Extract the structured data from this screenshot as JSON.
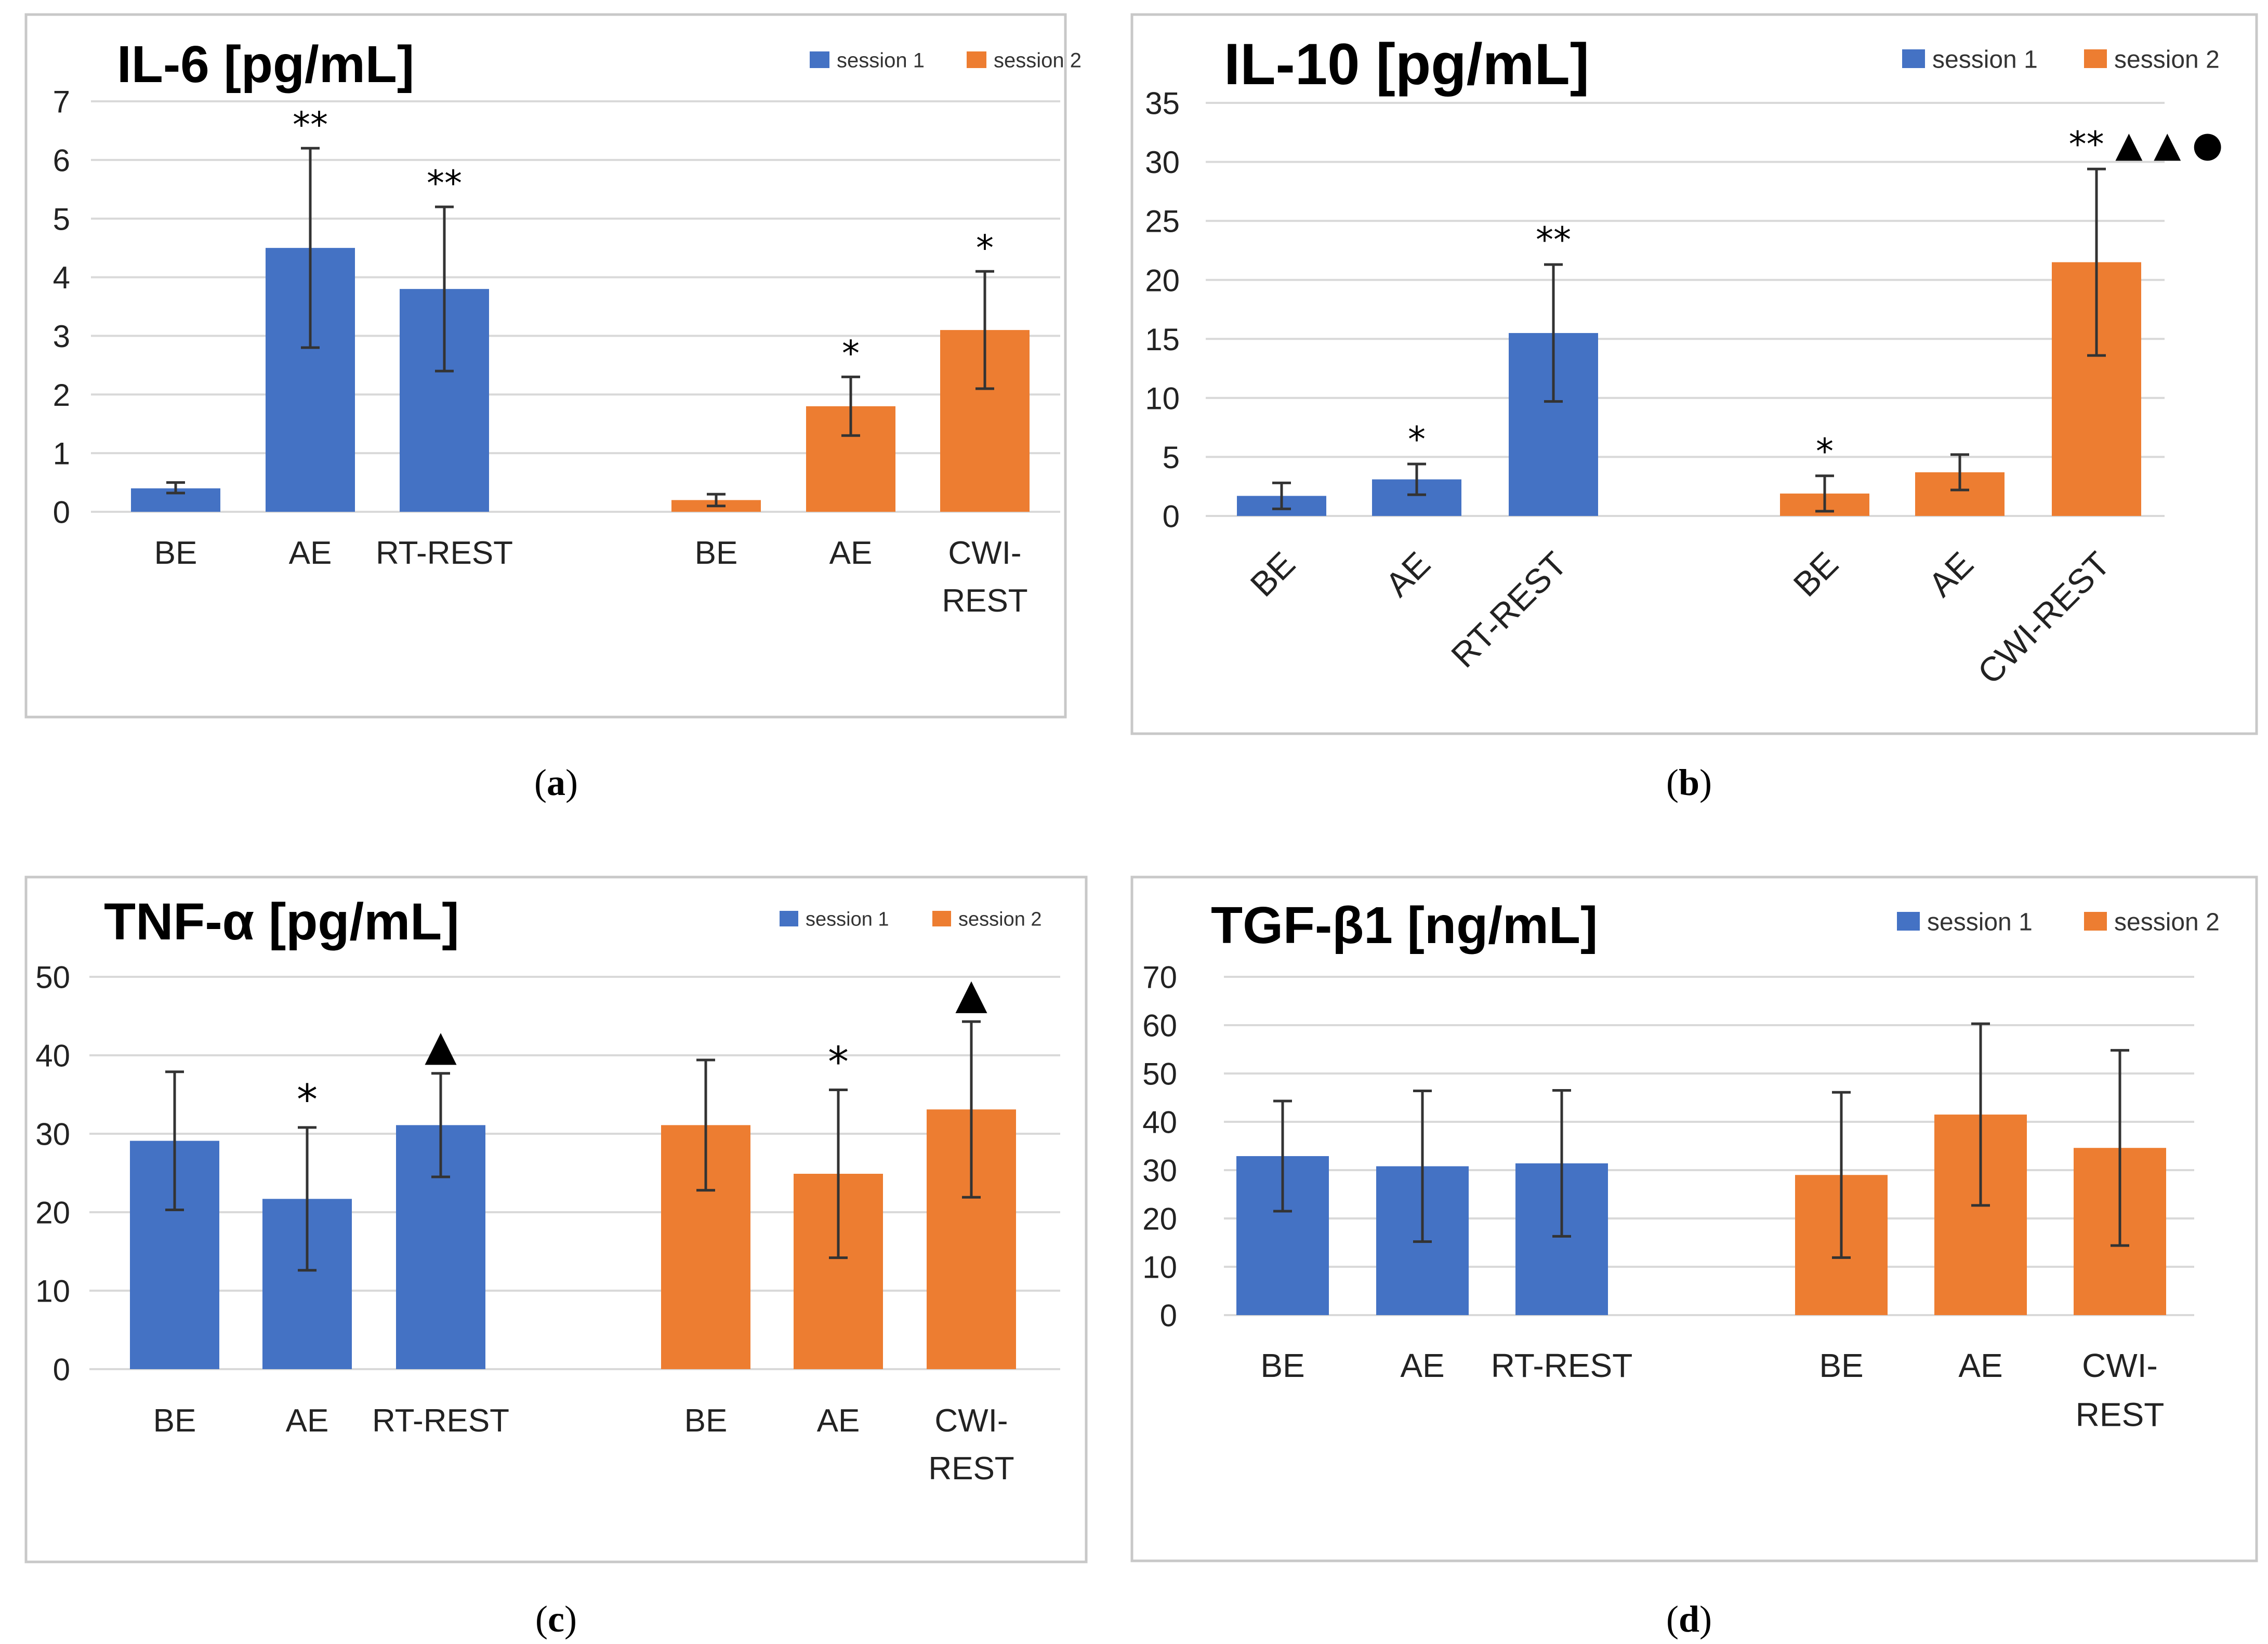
{
  "chart_data": [
    {
      "type": "bar",
      "panel_label": "a",
      "title": "IL-6 [pg/mL]",
      "ylim": [
        0,
        7
      ],
      "yticks": [
        0,
        1,
        2,
        3,
        4,
        5,
        6,
        7
      ],
      "xlabel_rotated": false,
      "legend": [
        {
          "name": "session 1",
          "color": "#4472c4"
        },
        {
          "name": "session 2",
          "color": "#ed7d31"
        }
      ],
      "groups": [
        {
          "series": "session 1",
          "color": "#4472c4",
          "bars": [
            {
              "label": [
                "BE"
              ],
              "value": 0.4,
              "error_low": 0.32,
              "error_high": 0.5,
              "marks": ""
            },
            {
              "label": [
                "AE"
              ],
              "value": 4.5,
              "error_low": 2.8,
              "error_high": 6.2,
              "marks": "**"
            },
            {
              "label": [
                "RT-REST"
              ],
              "value": 3.8,
              "error_low": 2.4,
              "error_high": 5.2,
              "marks": "**"
            }
          ]
        },
        {
          "series": "session 2",
          "color": "#ed7d31",
          "bars": [
            {
              "label": [
                "BE"
              ],
              "value": 0.2,
              "error_low": 0.1,
              "error_high": 0.3,
              "marks": ""
            },
            {
              "label": [
                "AE"
              ],
              "value": 1.8,
              "error_low": 1.3,
              "error_high": 2.3,
              "marks": "*"
            },
            {
              "label": [
                "CWI-",
                "REST"
              ],
              "value": 3.1,
              "error_low": 2.1,
              "error_high": 4.1,
              "marks": "*"
            }
          ]
        }
      ]
    },
    {
      "type": "bar",
      "panel_label": "b",
      "title": "IL-10 [pg/mL]",
      "ylim": [
        0,
        35
      ],
      "yticks": [
        0,
        5,
        10,
        15,
        20,
        25,
        30,
        35
      ],
      "xlabel_rotated": true,
      "legend": [
        {
          "name": "session 1",
          "color": "#4472c4"
        },
        {
          "name": "session 2",
          "color": "#ed7d31"
        }
      ],
      "groups": [
        {
          "series": "session 1",
          "color": "#4472c4",
          "bars": [
            {
              "label": [
                "BE"
              ],
              "value": 1.7,
              "error_low": 0.6,
              "error_high": 2.8,
              "marks": ""
            },
            {
              "label": [
                "AE"
              ],
              "value": 3.1,
              "error_low": 1.8,
              "error_high": 4.4,
              "marks": "*"
            },
            {
              "label": [
                "RT-REST"
              ],
              "value": 15.5,
              "error_low": 9.7,
              "error_high": 21.3,
              "marks": "**"
            }
          ]
        },
        {
          "series": "session 2",
          "color": "#ed7d31",
          "bars": [
            {
              "label": [
                "BE"
              ],
              "value": 1.9,
              "error_low": 0.4,
              "error_high": 3.4,
              "marks": "*"
            },
            {
              "label": [
                "AE"
              ],
              "value": 3.7,
              "error_low": 2.2,
              "error_high": 5.2,
              "marks": ""
            },
            {
              "label": [
                "CWI-REST"
              ],
              "value": 21.5,
              "error_low": 13.6,
              "error_high": 29.4,
              "marks": "** ▲ ▲ ●"
            }
          ]
        }
      ]
    },
    {
      "type": "bar",
      "panel_label": "c",
      "title": "TNF-α [pg/mL]",
      "ylim": [
        0,
        50
      ],
      "yticks": [
        0,
        10,
        20,
        30,
        40,
        50
      ],
      "xlabel_rotated": false,
      "legend": [
        {
          "name": "session 1",
          "color": "#4472c4"
        },
        {
          "name": "session 2",
          "color": "#ed7d31"
        }
      ],
      "groups": [
        {
          "series": "session 1",
          "color": "#4472c4",
          "bars": [
            {
              "label": [
                "BE"
              ],
              "value": 29.1,
              "error_low": 20.3,
              "error_high": 37.9,
              "marks": ""
            },
            {
              "label": [
                "AE"
              ],
              "value": 21.7,
              "error_low": 12.6,
              "error_high": 30.8,
              "marks": "*"
            },
            {
              "label": [
                "RT-REST"
              ],
              "value": 31.1,
              "error_low": 24.5,
              "error_high": 37.7,
              "marks": "▲"
            }
          ]
        },
        {
          "series": "session 2",
          "color": "#ed7d31",
          "bars": [
            {
              "label": [
                "BE"
              ],
              "value": 31.1,
              "error_low": 22.8,
              "error_high": 39.4,
              "marks": ""
            },
            {
              "label": [
                "AE"
              ],
              "value": 24.9,
              "error_low": 14.2,
              "error_high": 35.6,
              "marks": "*"
            },
            {
              "label": [
                "CWI-",
                "REST"
              ],
              "value": 33.1,
              "error_low": 21.9,
              "error_high": 44.3,
              "marks": "▲"
            }
          ]
        }
      ]
    },
    {
      "type": "bar",
      "panel_label": "d",
      "title": "TGF-β1 [ng/mL]",
      "ylim": [
        0,
        70
      ],
      "yticks": [
        0,
        10,
        20,
        30,
        40,
        50,
        60,
        70
      ],
      "xlabel_rotated": false,
      "legend": [
        {
          "name": "session 1",
          "color": "#4472c4"
        },
        {
          "name": "session 2",
          "color": "#ed7d31"
        }
      ],
      "groups": [
        {
          "series": "session 1",
          "color": "#4472c4",
          "bars": [
            {
              "label": [
                "BE"
              ],
              "value": 32.9,
              "error_low": 21.5,
              "error_high": 44.3,
              "marks": ""
            },
            {
              "label": [
                "AE"
              ],
              "value": 30.8,
              "error_low": 15.2,
              "error_high": 46.4,
              "marks": ""
            },
            {
              "label": [
                "RT-REST"
              ],
              "value": 31.4,
              "error_low": 16.3,
              "error_high": 46.5,
              "marks": ""
            }
          ]
        },
        {
          "series": "session 2",
          "color": "#ed7d31",
          "bars": [
            {
              "label": [
                "BE"
              ],
              "value": 29.0,
              "error_low": 11.9,
              "error_high": 46.1,
              "marks": ""
            },
            {
              "label": [
                "AE"
              ],
              "value": 41.5,
              "error_low": 22.7,
              "error_high": 60.3,
              "marks": ""
            },
            {
              "label": [
                "CWI-",
                "REST"
              ],
              "value": 34.6,
              "error_low": 14.4,
              "error_high": 54.8,
              "marks": ""
            }
          ]
        }
      ]
    }
  ]
}
